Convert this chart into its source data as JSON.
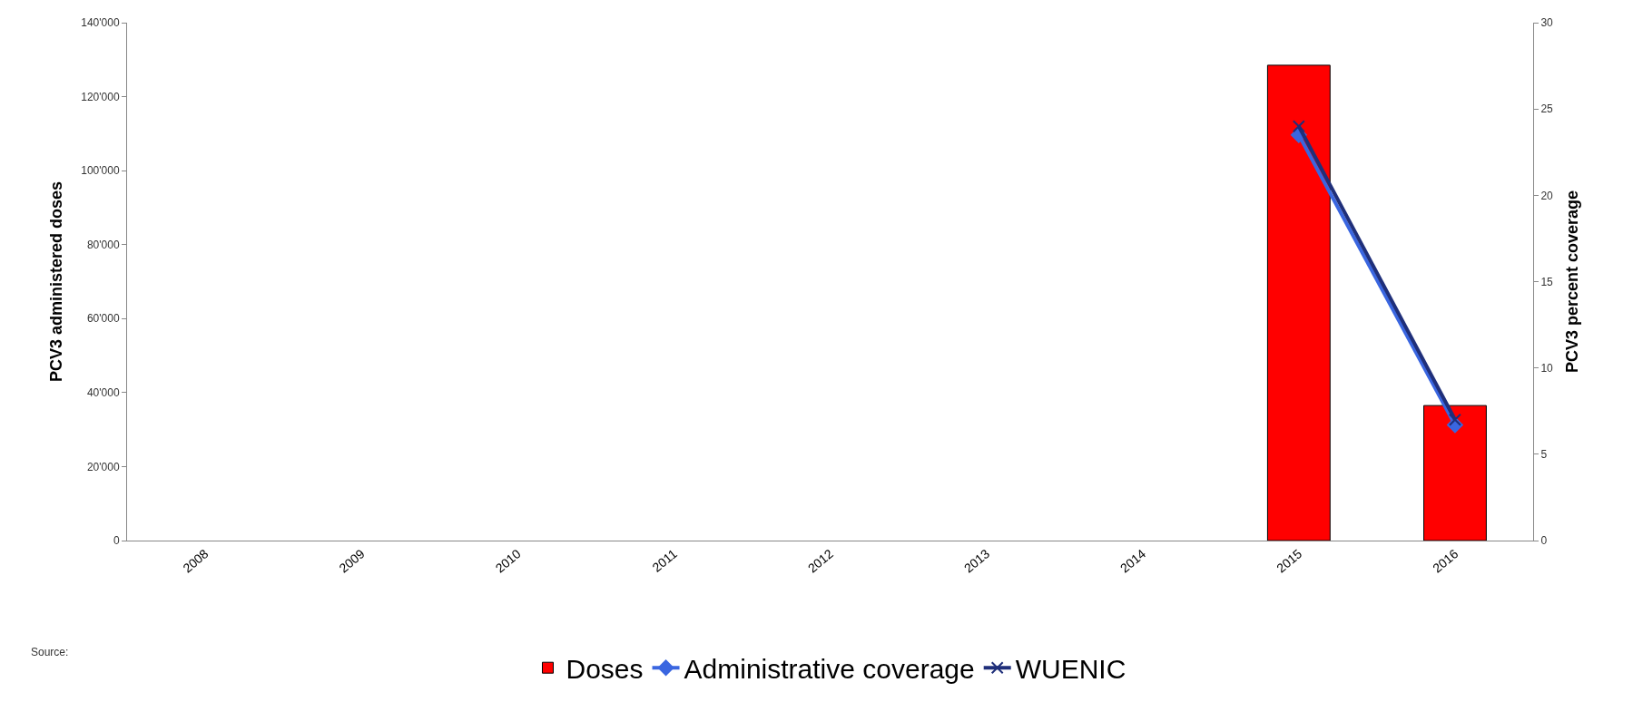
{
  "chart_data": {
    "type": "bar",
    "categories": [
      "2008",
      "2009",
      "2010",
      "2011",
      "2012",
      "2013",
      "2014",
      "2015",
      "2016"
    ],
    "ylabel": "PCV3 administered doses",
    "y2label": "PCV3 percent coverage",
    "ylim": [
      0,
      140000
    ],
    "yticks": [
      {
        "value": 0,
        "label": "0"
      },
      {
        "value": 20000,
        "label": "20'000"
      },
      {
        "value": 40000,
        "label": "40'000"
      },
      {
        "value": 60000,
        "label": "60'000"
      },
      {
        "value": 80000,
        "label": "80'000"
      },
      {
        "value": 100000,
        "label": "100'000"
      },
      {
        "value": 120000,
        "label": "120'000"
      },
      {
        "value": 140000,
        "label": "140'000"
      }
    ],
    "y2lim": [
      0,
      30
    ],
    "y2ticks": [
      0,
      5,
      10,
      15,
      20,
      25,
      30
    ],
    "series": [
      {
        "name": "Doses",
        "color": "#ff0000",
        "values": [
          null,
          null,
          null,
          null,
          null,
          null,
          null,
          128500,
          36500
        ]
      },
      {
        "name": "Administrative coverage",
        "type": "line",
        "axis": "y2",
        "color": "#3a66e0",
        "marker": "diamond",
        "values": [
          null,
          null,
          null,
          null,
          null,
          null,
          null,
          23.5,
          6.7
        ]
      },
      {
        "name": "WUENIC",
        "type": "line",
        "axis": "y2",
        "color": "#1f2f7a",
        "marker": "cross",
        "values": [
          null,
          null,
          null,
          null,
          null,
          null,
          null,
          24,
          7
        ]
      }
    ],
    "legend": "bottom",
    "annotations": [
      "Source:"
    ]
  }
}
